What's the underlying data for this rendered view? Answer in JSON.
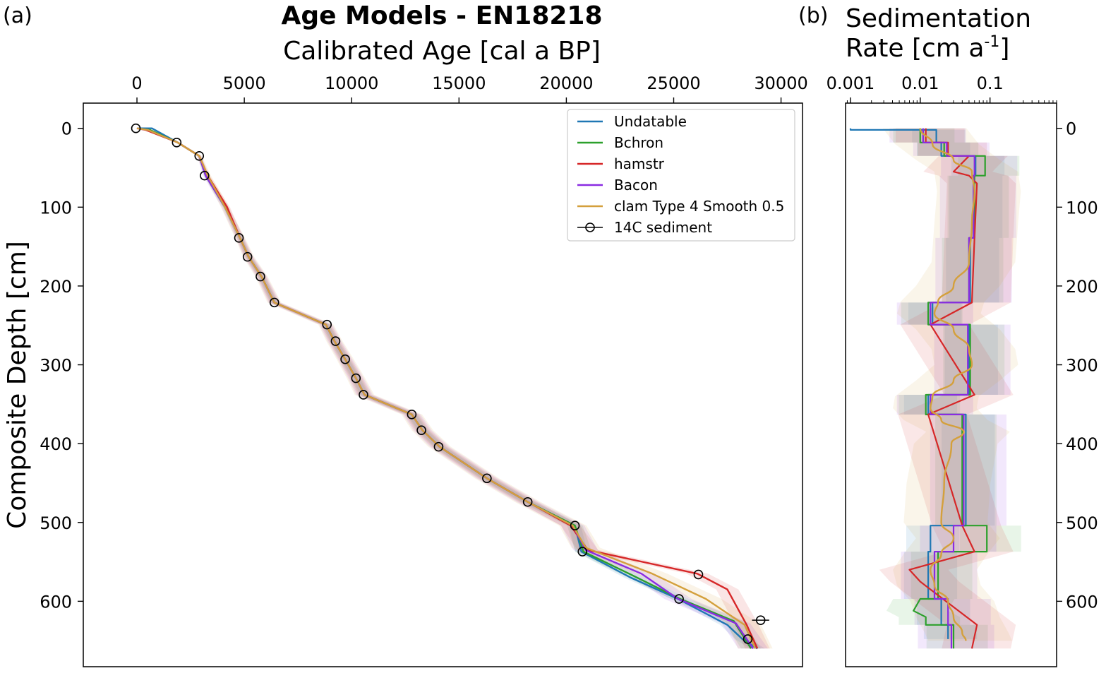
{
  "chart_data": [
    {
      "type": "line",
      "panel_label": "(a)",
      "title": "Age Models - EN18218",
      "xlabel": "Calibrated Age [cal a BP]",
      "ylabel": "Composite Depth [cm]",
      "xlim": [
        -2500,
        31000
      ],
      "ylim": [
        683,
        -32
      ],
      "y_inverted": true,
      "x_axis_position": "top",
      "xticks": [
        0,
        5000,
        10000,
        15000,
        20000,
        25000,
        30000
      ],
      "xtick_labels": [
        "0",
        "5000",
        "10000",
        "15000",
        "20000",
        "25000",
        "30000"
      ],
      "yticks": [
        0,
        100,
        200,
        300,
        400,
        500,
        600
      ],
      "ytick_labels": [
        "0",
        "100",
        "200",
        "300",
        "400",
        "500",
        "600"
      ],
      "legend_position": "top-right",
      "series": [
        {
          "name": "Undatable",
          "color": "#1f77b4",
          "x": [
            0,
            700,
            1900,
            2900,
            3200,
            4100,
            4800,
            5200,
            5800,
            6400,
            8800,
            9200,
            9700,
            10200,
            10600,
            12800,
            13300,
            14100,
            16300,
            18200,
            20400,
            20700,
            23000,
            25200,
            27500,
            28200,
            28900
          ],
          "y": [
            0,
            0,
            18,
            35,
            60,
            100,
            139,
            163,
            188,
            221,
            249,
            270,
            293,
            317,
            338,
            363,
            383,
            404,
            444,
            474,
            504,
            537,
            570,
            597,
            630,
            648,
            660
          ]
        },
        {
          "name": "Bchron",
          "color": "#2ca02c",
          "x": [
            0,
            600,
            1900,
            2900,
            3200,
            4100,
            4800,
            5200,
            5800,
            6400,
            8800,
            9200,
            9700,
            10200,
            10600,
            12800,
            13300,
            14100,
            16300,
            18200,
            20400,
            20800,
            23300,
            25300,
            27800,
            28600
          ],
          "y": [
            0,
            2,
            18,
            35,
            60,
            100,
            139,
            163,
            188,
            221,
            249,
            270,
            293,
            317,
            338,
            363,
            383,
            404,
            444,
            474,
            504,
            537,
            570,
            597,
            625,
            660
          ]
        },
        {
          "name": "hamstr",
          "color": "#d62728",
          "x": [
            0,
            400,
            1900,
            2900,
            3300,
            4200,
            4800,
            5200,
            5800,
            6400,
            8800,
            9200,
            9700,
            10200,
            10600,
            12800,
            13300,
            14100,
            16300,
            18200,
            20200,
            21000,
            26100,
            27500,
            28400,
            28900
          ],
          "y": [
            0,
            2,
            18,
            35,
            60,
            100,
            139,
            163,
            188,
            221,
            249,
            270,
            293,
            317,
            338,
            363,
            383,
            404,
            444,
            474,
            504,
            535,
            565,
            585,
            630,
            660
          ]
        },
        {
          "name": "Bacon",
          "color": "#8a2be2",
          "x": [
            0,
            500,
            1900,
            2900,
            3200,
            4100,
            4800,
            5200,
            5800,
            6400,
            8800,
            9200,
            9700,
            10200,
            10600,
            12800,
            13300,
            14100,
            16300,
            18200,
            20300,
            20900,
            23500,
            25200,
            27900,
            28700
          ],
          "y": [
            0,
            2,
            18,
            35,
            60,
            100,
            139,
            163,
            188,
            221,
            249,
            270,
            293,
            317,
            338,
            363,
            383,
            404,
            444,
            474,
            504,
            535,
            565,
            597,
            628,
            660
          ]
        },
        {
          "name": "clam Type 4 Smooth 0.5",
          "color": "#d4a03c",
          "x": [
            0,
            500,
            1900,
            2900,
            3300,
            4100,
            4800,
            5200,
            5800,
            6400,
            8800,
            9200,
            9700,
            10200,
            10600,
            12800,
            13300,
            14100,
            16300,
            18200,
            20300,
            20900,
            24000,
            26500,
            28300,
            28800
          ],
          "y": [
            0,
            2,
            18,
            35,
            60,
            100,
            139,
            163,
            188,
            221,
            249,
            270,
            293,
            317,
            338,
            363,
            383,
            404,
            444,
            474,
            504,
            532,
            565,
            597,
            630,
            660
          ]
        },
        {
          "name": "14C sediment",
          "color": "#000000",
          "marker": "open-circle",
          "x": [
            -50,
            1850,
            2900,
            3150,
            4750,
            5150,
            5750,
            6400,
            8850,
            9250,
            9700,
            10200,
            10550,
            12800,
            13250,
            14050,
            16300,
            18200,
            20400,
            20750,
            26150,
            25250,
            29050,
            28450
          ],
          "y": [
            0,
            18,
            35,
            60,
            139,
            163,
            188,
            221,
            249,
            270,
            293,
            317,
            338,
            363,
            383,
            404,
            444,
            474,
            504,
            537,
            566,
            597,
            624,
            648
          ],
          "xerr": [
            0,
            0,
            0,
            0,
            0,
            0,
            0,
            0,
            0,
            0,
            0,
            0,
            0,
            0,
            0,
            0,
            0,
            0,
            0,
            0,
            0,
            0,
            400,
            0
          ]
        }
      ]
    },
    {
      "type": "line",
      "panel_label": "(b)",
      "title": "Sedimentation",
      "xlabel": "Rate [cm a",
      "xlabel_sup": "-1",
      "xlabel_end": "]",
      "xscale": "log",
      "xlim": [
        0.00085,
        0.9
      ],
      "ylim": [
        683,
        -32
      ],
      "y_inverted": true,
      "x_axis_position": "top",
      "y_axis_position": "right",
      "xticks": [
        0.001,
        0.01,
        0.1
      ],
      "xtick_labels": [
        "0.001",
        "0.01",
        "0.1"
      ],
      "yticks": [
        0,
        100,
        200,
        300,
        400,
        500,
        600
      ],
      "ytick_labels": [
        "0",
        "100",
        "200",
        "300",
        "400",
        "500",
        "600"
      ],
      "series": [
        {
          "name": "Undatable",
          "color": "#1f77b4",
          "depth": [
            0,
            2,
            2,
            18,
            18,
            35,
            35,
            60,
            60,
            139,
            139,
            221,
            221,
            249,
            249,
            338,
            338,
            363,
            363,
            504,
            504,
            537,
            537,
            597,
            597,
            630,
            630,
            648
          ],
          "rate": [
            0.001,
            0.001,
            0.017,
            0.017,
            0.02,
            0.02,
            0.062,
            0.062,
            0.058,
            0.058,
            0.052,
            0.052,
            0.015,
            0.015,
            0.05,
            0.05,
            0.013,
            0.013,
            0.045,
            0.045,
            0.014,
            0.014,
            0.013,
            0.013,
            0.02,
            0.02,
            0.025,
            0.025
          ]
        },
        {
          "name": "Bchron",
          "color": "#2ca02c",
          "depth": [
            0,
            18,
            18,
            35,
            35,
            60,
            60,
            139,
            139,
            221,
            221,
            249,
            249,
            338,
            338,
            363,
            363,
            504,
            504,
            537,
            537,
            597,
            597,
            612,
            620,
            630,
            630,
            660
          ],
          "rate": [
            0.01,
            0.01,
            0.022,
            0.022,
            0.085,
            0.085,
            0.06,
            0.06,
            0.05,
            0.05,
            0.013,
            0.013,
            0.052,
            0.052,
            0.012,
            0.012,
            0.04,
            0.04,
            0.09,
            0.09,
            0.018,
            0.018,
            0.01,
            0.008,
            0.012,
            0.012,
            0.03,
            0.03
          ]
        },
        {
          "name": "hamstr",
          "color": "#d62728",
          "depth": [
            0,
            18,
            18,
            35,
            35,
            55,
            60,
            70,
            70,
            139,
            139,
            221,
            221,
            249,
            249,
            338,
            338,
            363,
            363,
            504,
            504,
            537,
            537,
            560,
            575,
            585,
            585,
            630,
            630,
            660
          ],
          "rate": [
            0.012,
            0.012,
            0.025,
            0.025,
            0.05,
            0.03,
            0.05,
            0.065,
            0.065,
            0.06,
            0.06,
            0.055,
            0.055,
            0.014,
            0.014,
            0.06,
            0.06,
            0.013,
            0.013,
            0.04,
            0.04,
            0.06,
            0.06,
            0.007,
            0.01,
            0.014,
            0.014,
            0.065,
            0.065,
            0.055
          ]
        },
        {
          "name": "Bacon",
          "color": "#8a2be2",
          "depth": [
            0,
            18,
            18,
            35,
            35,
            60,
            60,
            139,
            139,
            221,
            221,
            249,
            249,
            338,
            338,
            363,
            363,
            504,
            504,
            537,
            537,
            597,
            597,
            630,
            630,
            660
          ],
          "rate": [
            0.011,
            0.011,
            0.024,
            0.024,
            0.06,
            0.06,
            0.058,
            0.058,
            0.05,
            0.05,
            0.014,
            0.014,
            0.048,
            0.048,
            0.014,
            0.014,
            0.042,
            0.042,
            0.03,
            0.03,
            0.016,
            0.016,
            0.025,
            0.025,
            0.028,
            0.028
          ]
        },
        {
          "name": "clam Type 4 Smooth 0.5",
          "color": "#d4a03c",
          "smooth": true,
          "depth": [
            0,
            20,
            40,
            55,
            80,
            120,
            170,
            200,
            220,
            235,
            255,
            280,
            300,
            320,
            340,
            355,
            370,
            385,
            400,
            450,
            500,
            520,
            540,
            560,
            580,
            600,
            620,
            640,
            650
          ],
          "rate": [
            0.01,
            0.015,
            0.03,
            0.055,
            0.06,
            0.055,
            0.05,
            0.03,
            0.018,
            0.016,
            0.03,
            0.05,
            0.055,
            0.03,
            0.015,
            0.014,
            0.02,
            0.042,
            0.028,
            0.022,
            0.02,
            0.03,
            0.02,
            0.014,
            0.016,
            0.025,
            0.03,
            0.04,
            0.045
          ]
        }
      ]
    }
  ]
}
